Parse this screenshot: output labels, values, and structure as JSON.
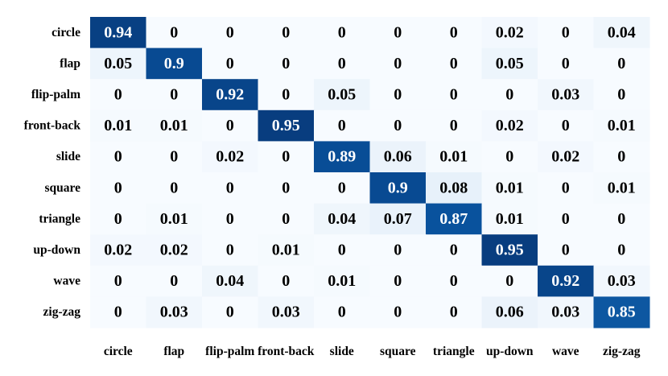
{
  "chart_data": {
    "type": "heatmap",
    "row_labels": [
      "circle",
      "flap",
      "flip-palm",
      "front-back",
      "slide",
      "square",
      "triangle",
      "up-down",
      "wave",
      "zig-zag"
    ],
    "col_labels": [
      "circle",
      "flap",
      "flip-palm",
      "front-back",
      "slide",
      "square",
      "triangle",
      "up-down",
      "wave",
      "zig-zag"
    ],
    "values": [
      [
        "0.94",
        "0",
        "0",
        "0",
        "0",
        "0",
        "0",
        "0.02",
        "0",
        "0.04"
      ],
      [
        "0.05",
        "0.9",
        "0",
        "0",
        "0",
        "0",
        "0",
        "0.05",
        "0",
        "0"
      ],
      [
        "0",
        "0",
        "0.92",
        "0",
        "0.05",
        "0",
        "0",
        "0",
        "0.03",
        "0"
      ],
      [
        "0.01",
        "0.01",
        "0",
        "0.95",
        "0",
        "0",
        "0",
        "0.02",
        "0",
        "0.01"
      ],
      [
        "0",
        "0",
        "0.02",
        "0",
        "0.89",
        "0.06",
        "0.01",
        "0",
        "0.02",
        "0"
      ],
      [
        "0",
        "0",
        "0",
        "0",
        "0",
        "0.9",
        "0.08",
        "0.01",
        "0",
        "0.01"
      ],
      [
        "0",
        "0.01",
        "0",
        "0",
        "0.04",
        "0.07",
        "0.87",
        "0.01",
        "0",
        "0"
      ],
      [
        "0.02",
        "0.02",
        "0",
        "0.01",
        "0",
        "0",
        "0",
        "0.95",
        "0",
        "0"
      ],
      [
        "0",
        "0",
        "0.04",
        "0",
        "0.01",
        "0",
        "0",
        "0",
        "0.92",
        "0.03"
      ],
      [
        "0",
        "0.03",
        "0",
        "0.03",
        "0",
        "0",
        "0",
        "0.06",
        "0.03",
        "0.85"
      ]
    ],
    "colormap": "Blues",
    "value_range": [
      0,
      1
    ],
    "colors": {
      "low": "#f7fbff",
      "mid": "#c6dbef",
      "high": "#08306b",
      "text_dark": "#000000",
      "text_light": "#ffffff"
    }
  }
}
